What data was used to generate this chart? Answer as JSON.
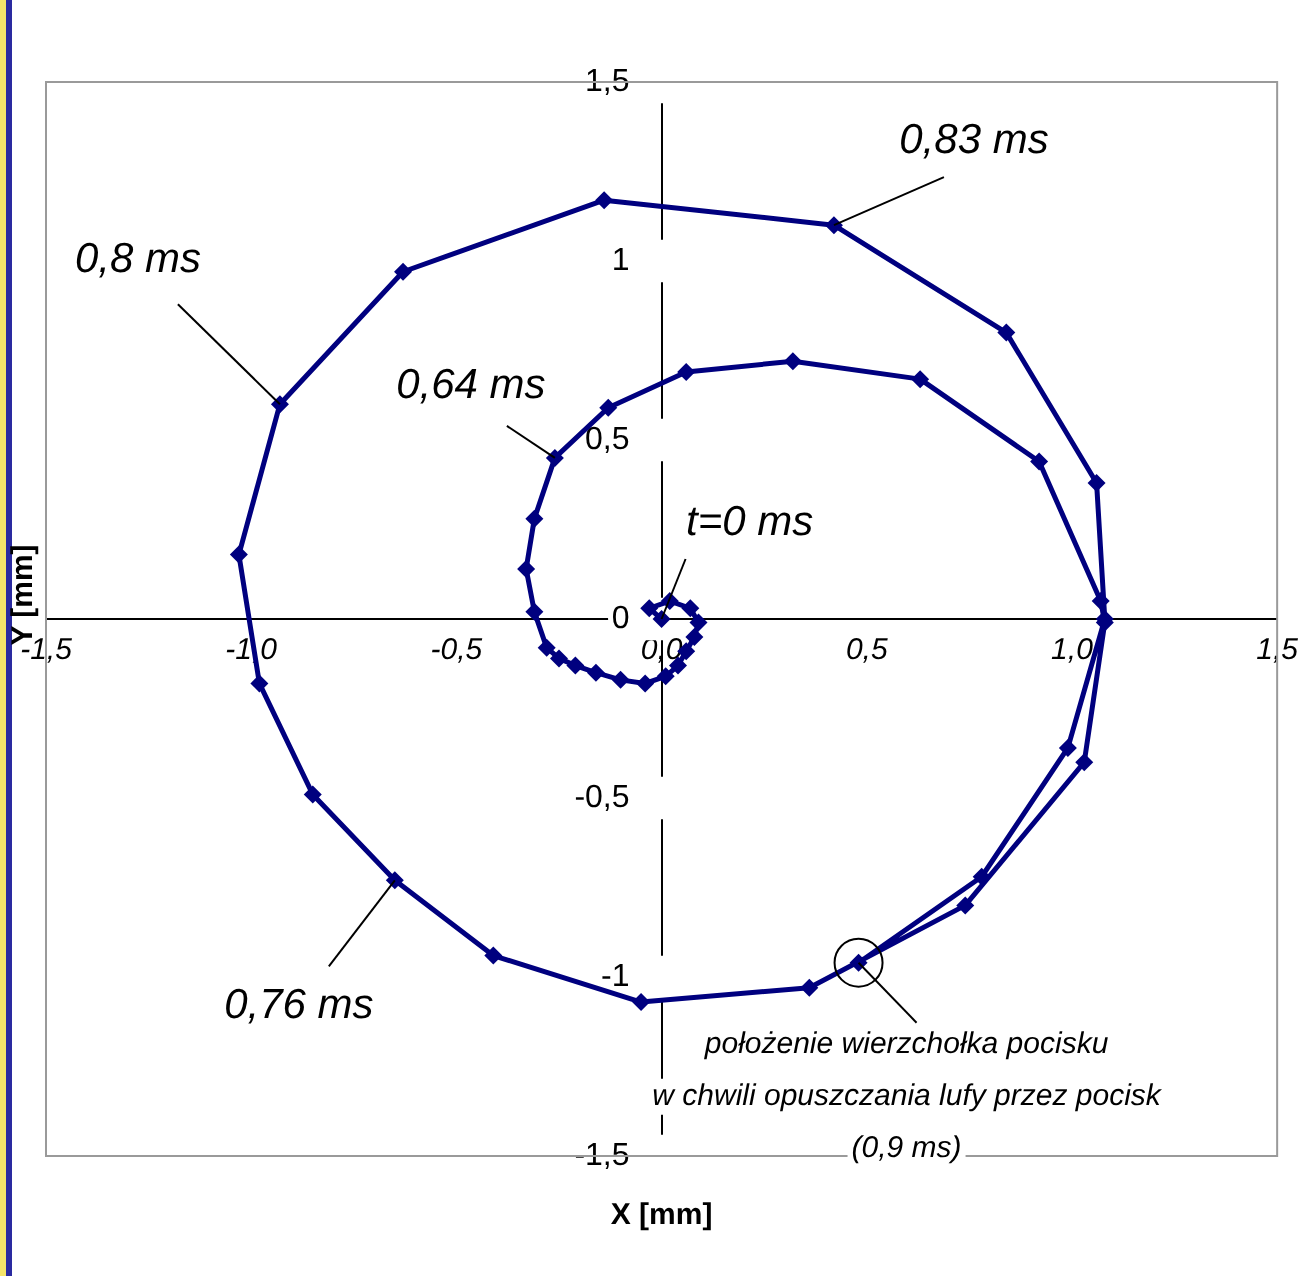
{
  "chart_data": {
    "type": "line",
    "xlabel": "X [mm]",
    "ylabel": "Y [mm]",
    "color": "#00007f",
    "marker": "diamond",
    "x": [
      0.0,
      -0.03,
      0.02,
      0.07,
      0.09,
      0.08,
      0.06,
      0.04,
      0.01,
      -0.04,
      -0.1,
      -0.16,
      -0.21,
      -0.25,
      -0.28,
      -0.31,
      -0.33,
      -0.31,
      -0.26,
      -0.13,
      0.06,
      0.32,
      0.63,
      0.92,
      1.07,
      1.08,
      1.03,
      0.74,
      0.36,
      -0.05,
      -0.41,
      -0.65,
      -0.85,
      -0.98,
      -1.03,
      -0.93,
      -0.63,
      -0.14,
      0.42,
      0.84,
      1.06,
      1.08,
      0.99,
      0.78,
      0.48
    ],
    "values": [
      0.0,
      0.03,
      0.05,
      0.03,
      -0.01,
      -0.05,
      -0.09,
      -0.13,
      -0.16,
      -0.18,
      -0.17,
      -0.15,
      -0.13,
      -0.11,
      -0.08,
      0.02,
      0.14,
      0.28,
      0.45,
      0.59,
      0.69,
      0.72,
      0.67,
      0.44,
      0.05,
      -0.01,
      -0.4,
      -0.8,
      -1.03,
      -1.07,
      -0.94,
      -0.73,
      -0.49,
      -0.18,
      0.18,
      0.6,
      0.97,
      1.17,
      1.1,
      0.8,
      0.38,
      0.0,
      -0.36,
      -0.72,
      -0.96
    ],
    "xlim": [
      -1.5,
      1.5
    ],
    "ylim": [
      -1.5,
      1.5
    ],
    "xticks": [
      {
        "value": -1.5,
        "label": "-1,5"
      },
      {
        "value": -1,
        "label": "-1,0"
      },
      {
        "value": -0.5,
        "label": "-0,5"
      },
      {
        "value": 0,
        "label": "0,0"
      },
      {
        "value": 0.5,
        "label": "0,5"
      },
      {
        "value": 1,
        "label": "1,0"
      },
      {
        "value": 1.5,
        "label": "1,5"
      }
    ],
    "yticks": [
      {
        "value": -1.5,
        "label": "-1,5"
      },
      -1,
      {
        "value": -0.5,
        "label": "-0,5"
      },
      0,
      {
        "value": 0.5,
        "label": "0,5"
      },
      1,
      {
        "value": 1.5,
        "label": "1,5"
      }
    ],
    "annotations": [
      {
        "text": "0,83 ms",
        "x": 0.42,
        "y": 1.1
      },
      {
        "text": "0,8 ms",
        "x": -0.93,
        "y": 0.6
      },
      {
        "text": "0,64 ms",
        "x": -0.26,
        "y": 0.45
      },
      {
        "text": "t=0 ms",
        "x": 0.0,
        "y": 0.0
      },
      {
        "text": "0,76 ms",
        "x": -0.65,
        "y": -0.73
      },
      {
        "text": "położenie wierzchołka pocisku\nw chwili opuszczania lufy przez pocisk\n(0,9 ms)",
        "x": 0.48,
        "y": -0.96
      }
    ]
  }
}
